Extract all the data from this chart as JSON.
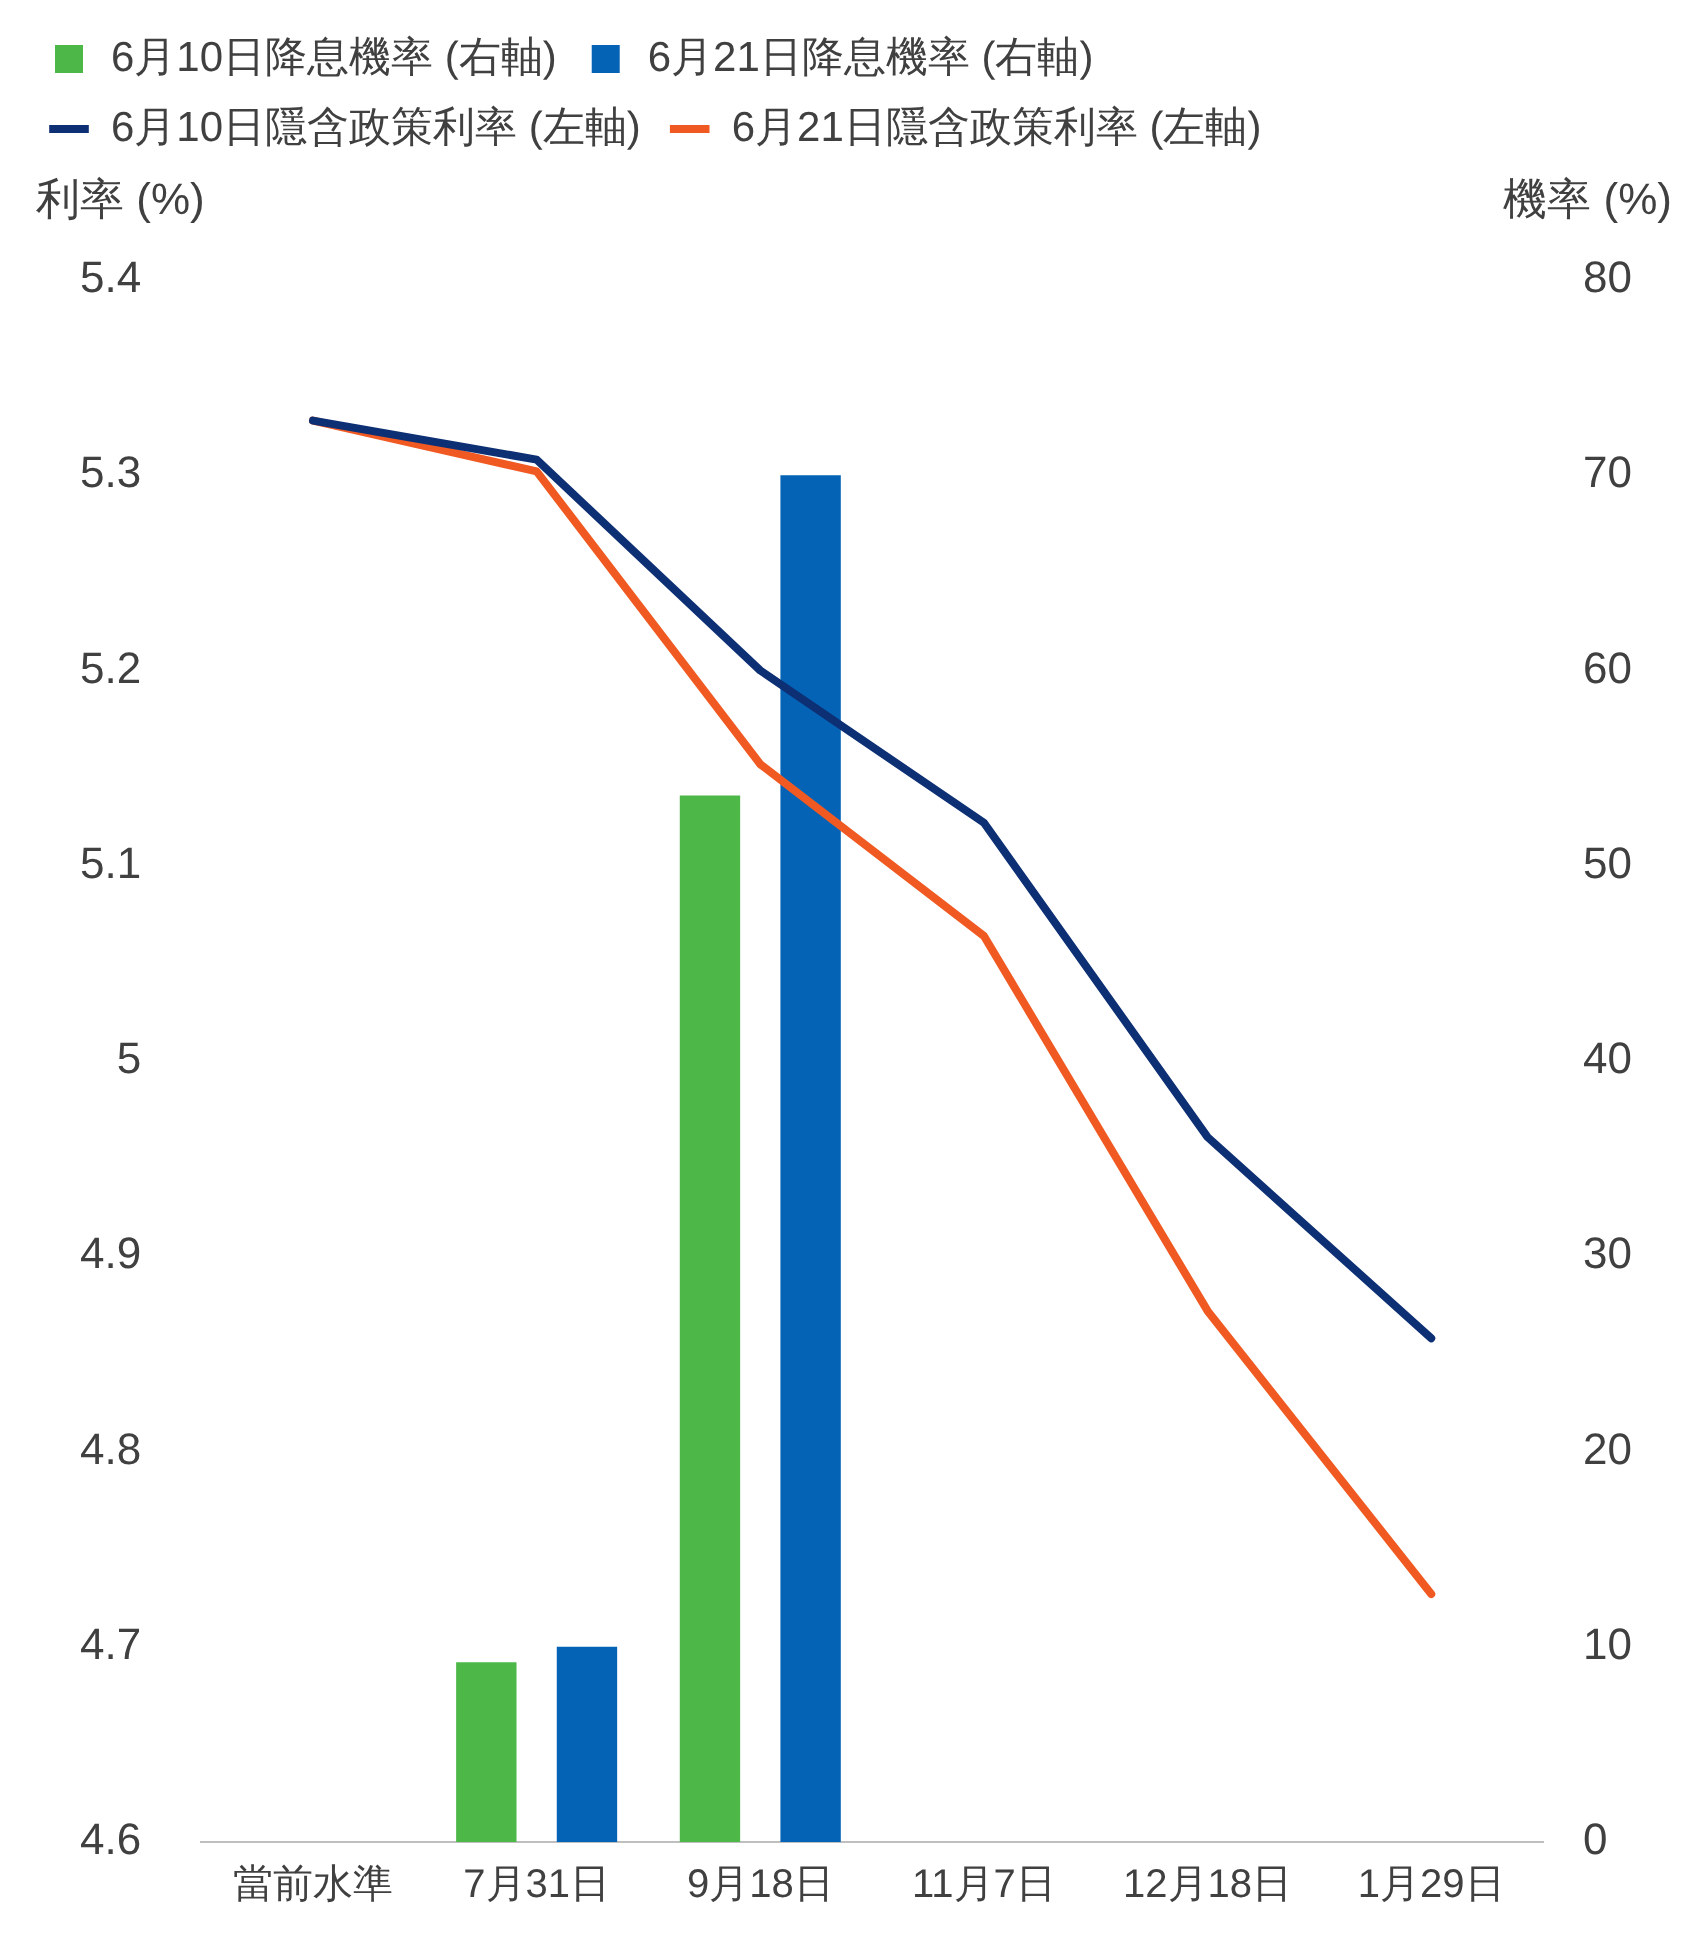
{
  "chart_data": {
    "type": "bar",
    "categories": [
      "當前水準",
      "7月31日",
      "9月18日",
      "11月7日",
      "12月18日",
      "1月29日"
    ],
    "series": [
      {
        "name": "6月10日降息機率 (右軸)",
        "axis": "y2",
        "color": "#4db848",
        "values": [
          null,
          9.2,
          53.6,
          null,
          null,
          null
        ]
      },
      {
        "name": "6月21日降息機率 (右軸)",
        "axis": "y2",
        "color": "#0563b5",
        "values": [
          null,
          10,
          70,
          null,
          null,
          null
        ]
      },
      {
        "name": "6月10日隱含政策利率 (左軸)",
        "type": "line",
        "color": "#0d2f74",
        "values": [
          5.328,
          5.308,
          5.2,
          5.122,
          4.961,
          4.858
        ]
      },
      {
        "name": "6月21日隱含政策利率 (左軸)",
        "type": "line",
        "color": "#f05a22",
        "values": [
          5.328,
          5.302,
          5.152,
          5.064,
          4.872,
          4.727
        ]
      }
    ],
    "ylabel": "利率 (%)",
    "y2label": "機率 (%)",
    "ylim": [
      4.6,
      5.4
    ],
    "yticks": [
      4.6,
      4.7,
      4.8,
      4.9,
      5,
      5.1,
      5.2,
      5.3,
      5.4
    ],
    "y2lim": [
      0,
      80
    ],
    "y2ticks": [
      0,
      10,
      20,
      30,
      40,
      50,
      60,
      70,
      80
    ],
    "grid": false,
    "legend": "top",
    "marker": "none",
    "line_style": "solid"
  }
}
